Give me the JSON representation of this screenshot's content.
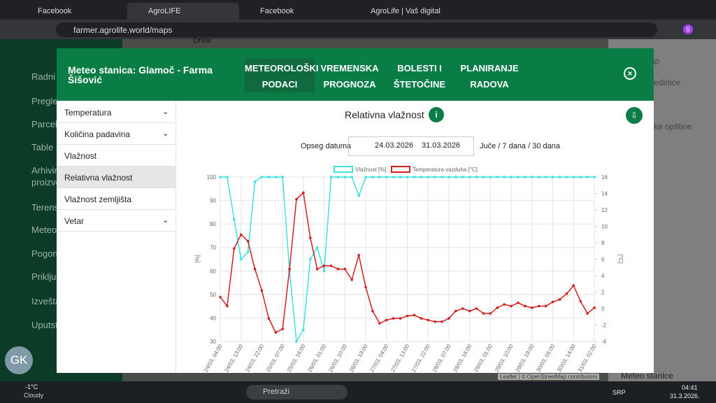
{
  "browser": {
    "tabs": [
      "Facebook",
      "AgroLIFE",
      "Facebook",
      "AgroLife | Vaš digitalni asistent"
    ],
    "url": "farmer.agrolife.world/maps",
    "profile": "S"
  },
  "background": {
    "menu": [
      "Radni n",
      "Pregle",
      "Parcele",
      "Table",
      "Arhivira",
      "proizvo",
      "Terens",
      "Meteo",
      "Pogona",
      "Priključ",
      "Izvešta",
      "Uputst"
    ],
    "user_initials": "GK",
    "map_label": "Drvar",
    "right_labels": [
      "ap",
      "edinice",
      "ke opštine",
      "Meteo stanice"
    ],
    "attribution": "Leaflet | © OpenStreetMap contributors"
  },
  "modal": {
    "title": "Meteo stanica: Glamoč - Farma Šišović",
    "tabs": [
      "METEOROLOŠKI PODACI",
      "VREMENSKA PROGNOZA",
      "BOLESTI I ŠTETOČINE",
      "PLANIRANJE RADOVA"
    ],
    "menu": [
      "Temperatura",
      "Količina padavina",
      "Vlažnost",
      "Relativna vlažnost",
      "Vlažnost zemljišta",
      "Vetar"
    ],
    "date_label": "Opseg datuma",
    "date_from": "24.03.2026",
    "date_to": "31.03.2026",
    "quick_ranges": "Juče / 7 dana / 30 dana"
  },
  "chart_data": {
    "type": "line",
    "title": "Relativna vlažnost",
    "ylabel": "[%]",
    "y2label": "[°C]",
    "categories": [
      "24/03, 04:00",
      null,
      null,
      "24/03, 13:00",
      null,
      null,
      "24/03, 22:00",
      null,
      null,
      "25/03, 07:00",
      null,
      null,
      "25/03, 16:00",
      null,
      null,
      "26/03, 01:00",
      null,
      null,
      "26/03, 10:00",
      null,
      null,
      "26/03, 19:00",
      null,
      null,
      "27/03, 04:00",
      null,
      null,
      "27/03, 13:00",
      null,
      null,
      "27/03, 22:00",
      null,
      null,
      "28/03, 07:00",
      null,
      null,
      "28/03, 16:00",
      null,
      null,
      "29/03, 01:00",
      null,
      null,
      "29/03, 10:00",
      null,
      null,
      "29/03, 19:00",
      null,
      null,
      "30/03, 05:00",
      null,
      null,
      "30/03, 14:00",
      null,
      null,
      "31/03, 02:00"
    ],
    "series": [
      {
        "name": "Vlažnost [%]",
        "color": "#3ee0e0",
        "values": [
          100,
          100,
          82,
          65,
          68,
          98,
          100,
          100,
          100,
          100,
          60,
          30,
          35,
          65,
          70,
          60,
          100,
          100,
          100,
          100,
          92,
          100,
          100,
          100,
          100,
          100,
          100,
          100,
          100,
          100,
          100,
          100,
          100,
          100,
          100,
          100,
          100,
          100,
          100,
          100,
          100,
          100,
          100,
          100,
          100,
          100,
          100,
          100,
          100,
          100,
          100,
          100,
          100,
          100,
          100
        ]
      },
      {
        "name": "Temperatura vazduha [°C]",
        "color": "#d21f1f",
        "axis": "y2",
        "values": [
          1.4,
          0.3,
          7.3,
          9.0,
          8.2,
          4.8,
          2.2,
          -1.2,
          -2.9,
          -2.5,
          4.8,
          13.3,
          14.1,
          8.6,
          4.8,
          5.2,
          5.2,
          4.8,
          4.8,
          3.5,
          6.5,
          2.6,
          -0.3,
          -1.8,
          -1.4,
          -1.2,
          -1.2,
          -0.9,
          -0.8,
          -1.2,
          -1.4,
          -1.6,
          -1.6,
          -1.2,
          -0.3,
          0,
          -0.3,
          0,
          -0.6,
          -0.6,
          0.1,
          0.5,
          0.3,
          0.7,
          0.3,
          0.1,
          0.3,
          0.3,
          0.8,
          1.1,
          1.8,
          2.8,
          0.9,
          -0.6,
          0.1
        ]
      }
    ],
    "ylim": [
      30,
      100
    ],
    "yticks": [
      30,
      40,
      50,
      60,
      70,
      80,
      90,
      100
    ],
    "y2lim": [
      -4,
      16
    ],
    "y2ticks": [
      -4,
      -2,
      0,
      2,
      4,
      6,
      8,
      10,
      12,
      14,
      16
    ],
    "grid": true,
    "legend": "top"
  },
  "taskbar": {
    "temperature": "-1°C",
    "weather": "Cloudy",
    "search": "Pretraži",
    "language": "SRP",
    "time": "04:41",
    "date": "31.3.2026."
  }
}
